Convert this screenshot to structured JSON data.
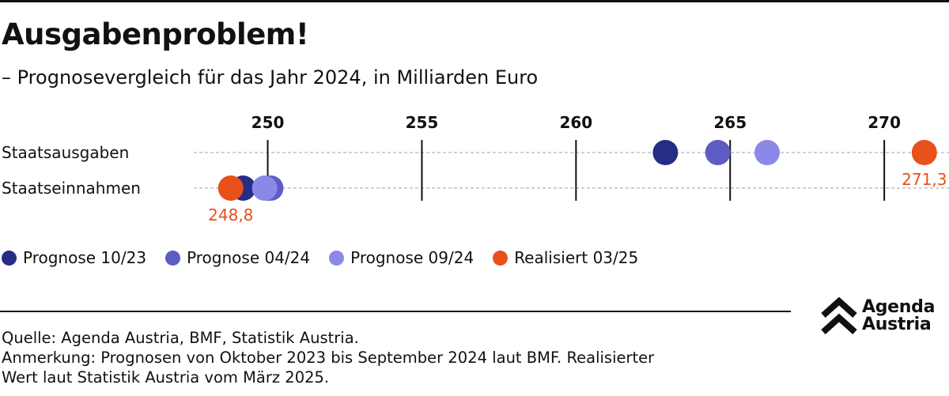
{
  "header": {
    "title": "Ausgabenproblem!",
    "subtitle": "– Prognosevergleich für das Jahr 2024, in Milliarden Euro"
  },
  "colors": {
    "prognose_10_23": "#262d85",
    "prognose_04_24": "#5c5cc4",
    "prognose_09_24": "#8a88e8",
    "realisiert_03_25": "#e8501c"
  },
  "chart_data": {
    "type": "scatter",
    "orientation": "horizontal dot plot",
    "categories": [
      "Staatsausgaben",
      "Staatseinnahmen"
    ],
    "x_ticks": [
      250,
      255,
      260,
      265,
      270
    ],
    "xlim": [
      247.6,
      272.1
    ],
    "grid": true,
    "legend_placement": "bottom",
    "series": [
      {
        "name": "Prognose 10/23",
        "values": [
          262.9,
          249.2
        ]
      },
      {
        "name": "Prognose 04/24",
        "values": [
          264.6,
          250.1
        ]
      },
      {
        "name": "Prognose 09/24",
        "values": [
          266.2,
          249.9
        ]
      },
      {
        "name": "Realisiert 03/25",
        "values": [
          271.3,
          248.8
        ]
      }
    ],
    "data_labels": [
      {
        "text": "271,3",
        "category": "Staatsausgaben",
        "series": "Realisiert 03/25"
      },
      {
        "text": "248,8",
        "category": "Staatseinnahmen",
        "series": "Realisiert 03/25"
      }
    ]
  },
  "legend": [
    {
      "label": "Prognose 10/23"
    },
    {
      "label": "Prognose 04/24"
    },
    {
      "label": "Prognose 09/24"
    },
    {
      "label": "Realisiert 03/25"
    }
  ],
  "footer": {
    "source": "Quelle: Agenda Austria, BMF, Statistik Austria.",
    "note_line1": "Anmerkung: Prognosen von Oktober 2023 bis September 2024 laut BMF. Realisierter",
    "note_line2": "Wert laut Statistik Austria vom März 2025."
  },
  "logo": {
    "line1": "Agenda",
    "line2": "Austria"
  }
}
